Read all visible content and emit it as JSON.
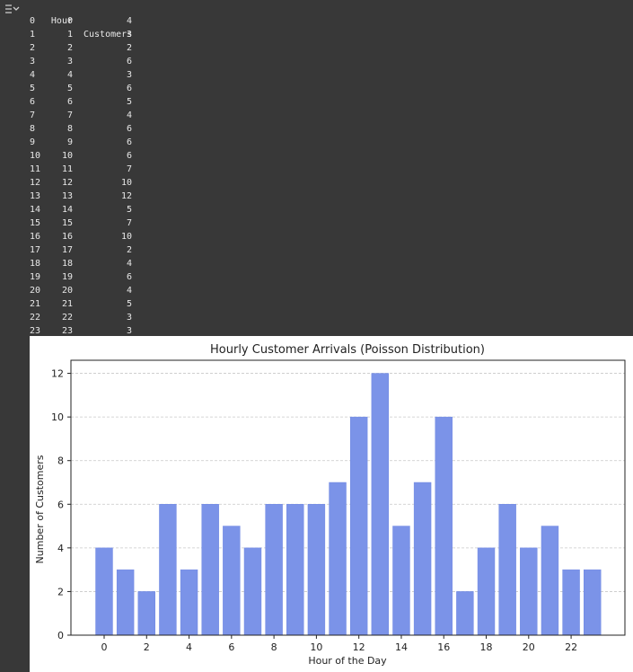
{
  "output_icon": "output-expand-icon",
  "table": {
    "columns": [
      "Hour",
      "Customers"
    ],
    "rows": [
      [
        "0",
        "0",
        "4"
      ],
      [
        "1",
        "1",
        "3"
      ],
      [
        "2",
        "2",
        "2"
      ],
      [
        "3",
        "3",
        "6"
      ],
      [
        "4",
        "4",
        "3"
      ],
      [
        "5",
        "5",
        "6"
      ],
      [
        "6",
        "6",
        "5"
      ],
      [
        "7",
        "7",
        "4"
      ],
      [
        "8",
        "8",
        "6"
      ],
      [
        "9",
        "9",
        "6"
      ],
      [
        "10",
        "10",
        "6"
      ],
      [
        "11",
        "11",
        "7"
      ],
      [
        "12",
        "12",
        "10"
      ],
      [
        "13",
        "13",
        "12"
      ],
      [
        "14",
        "14",
        "5"
      ],
      [
        "15",
        "15",
        "7"
      ],
      [
        "16",
        "16",
        "10"
      ],
      [
        "17",
        "17",
        "2"
      ],
      [
        "18",
        "18",
        "4"
      ],
      [
        "19",
        "19",
        "6"
      ],
      [
        "20",
        "20",
        "4"
      ],
      [
        "21",
        "21",
        "5"
      ],
      [
        "22",
        "22",
        "3"
      ],
      [
        "23",
        "23",
        "3"
      ]
    ]
  },
  "chart_data": {
    "type": "bar",
    "title": "Hourly Customer Arrivals (Poisson Distribution)",
    "xlabel": "Hour of the Day",
    "ylabel": "Number of Customers",
    "categories": [
      0,
      1,
      2,
      3,
      4,
      5,
      6,
      7,
      8,
      9,
      10,
      11,
      12,
      13,
      14,
      15,
      16,
      17,
      18,
      19,
      20,
      21,
      22,
      23
    ],
    "values": [
      4,
      3,
      2,
      6,
      3,
      6,
      5,
      4,
      6,
      6,
      6,
      7,
      10,
      12,
      5,
      7,
      10,
      2,
      4,
      6,
      4,
      5,
      3,
      3
    ],
    "xticks": [
      "0",
      "2",
      "4",
      "6",
      "8",
      "10",
      "12",
      "14",
      "16",
      "18",
      "20",
      "22"
    ],
    "yticks": [
      "0",
      "2",
      "4",
      "6",
      "8",
      "10",
      "12"
    ],
    "ylim": [
      0,
      12.6
    ],
    "grid": "y, dashed",
    "bar_color": "#7b93e8",
    "bar_edge": "#6f88e2"
  }
}
